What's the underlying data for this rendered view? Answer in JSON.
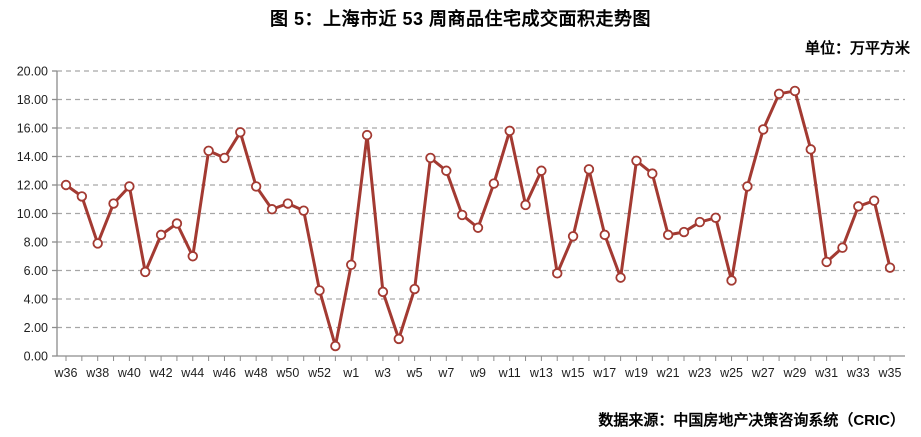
{
  "header": {
    "title": "图 5：上海市近 53 周商品住宅成交面积走势图",
    "unit_label": "单位：万平方米"
  },
  "footer": {
    "source_label": "数据来源：中国房地产决策咨询系统（CRIC）"
  },
  "chart_data": {
    "type": "line",
    "title": "图 5：上海市近 53 周商品住宅成交面积走势图",
    "unit": "万平方米",
    "categories": [
      "w36",
      "w37",
      "w38",
      "w39",
      "w40",
      "w41",
      "w42",
      "w43",
      "w44",
      "w45",
      "w46",
      "w47",
      "w48",
      "w49",
      "w50",
      "w51",
      "w52",
      "w53",
      "w1",
      "w2",
      "w3",
      "w4",
      "w5",
      "w6",
      "w7",
      "w8",
      "w9",
      "w10",
      "w11",
      "w12",
      "w13",
      "w14",
      "w15",
      "w16",
      "w17",
      "w18",
      "w19",
      "w20",
      "w21",
      "w22",
      "w23",
      "w24",
      "w25",
      "w26",
      "w27",
      "w28",
      "w29",
      "w30",
      "w31",
      "w32",
      "w33",
      "w34",
      "w35"
    ],
    "values": [
      12.0,
      11.2,
      7.9,
      10.7,
      11.9,
      5.9,
      8.5,
      9.3,
      7.0,
      14.4,
      13.9,
      15.7,
      11.9,
      10.3,
      10.7,
      10.2,
      4.6,
      0.7,
      6.4,
      15.5,
      4.5,
      1.2,
      4.7,
      13.9,
      13.0,
      9.9,
      9.0,
      12.1,
      15.8,
      10.6,
      13.0,
      5.8,
      8.4,
      13.1,
      8.5,
      5.5,
      13.7,
      12.8,
      8.5,
      8.7,
      9.4,
      9.7,
      5.3,
      11.9,
      15.9,
      18.4,
      18.6,
      14.5,
      6.6,
      7.6,
      10.5,
      10.9,
      6.2
    ],
    "xtick_labels": [
      "w36",
      "w38",
      "w40",
      "w42",
      "w44",
      "w46",
      "w48",
      "w50",
      "w52",
      "w1",
      "w3",
      "w5",
      "w7",
      "w9",
      "w11",
      "w13",
      "w15",
      "w17",
      "w19",
      "w21",
      "w23",
      "w25",
      "w27",
      "w29",
      "w31",
      "w33",
      "w35"
    ],
    "xtick_label_every": 2,
    "ytick_labels": [
      "20.00",
      "18.00",
      "16.00",
      "14.00",
      "12.00",
      "10.00",
      "8.00",
      "6.00",
      "4.00",
      "2.00",
      "0.00"
    ],
    "ylim": [
      0,
      20
    ],
    "ytick_step": 2,
    "grid": "horizontal-dashed",
    "legend": "none",
    "marker": "open-circle",
    "colors": {
      "line": "#A33A32",
      "marker_fill": "#FFFFFF",
      "gridline": "#A6A6A6",
      "axis": "#8C8C8C",
      "tick_text": "#1F1F1F",
      "title_text": "#000000",
      "background": "#FFFFFF"
    }
  }
}
